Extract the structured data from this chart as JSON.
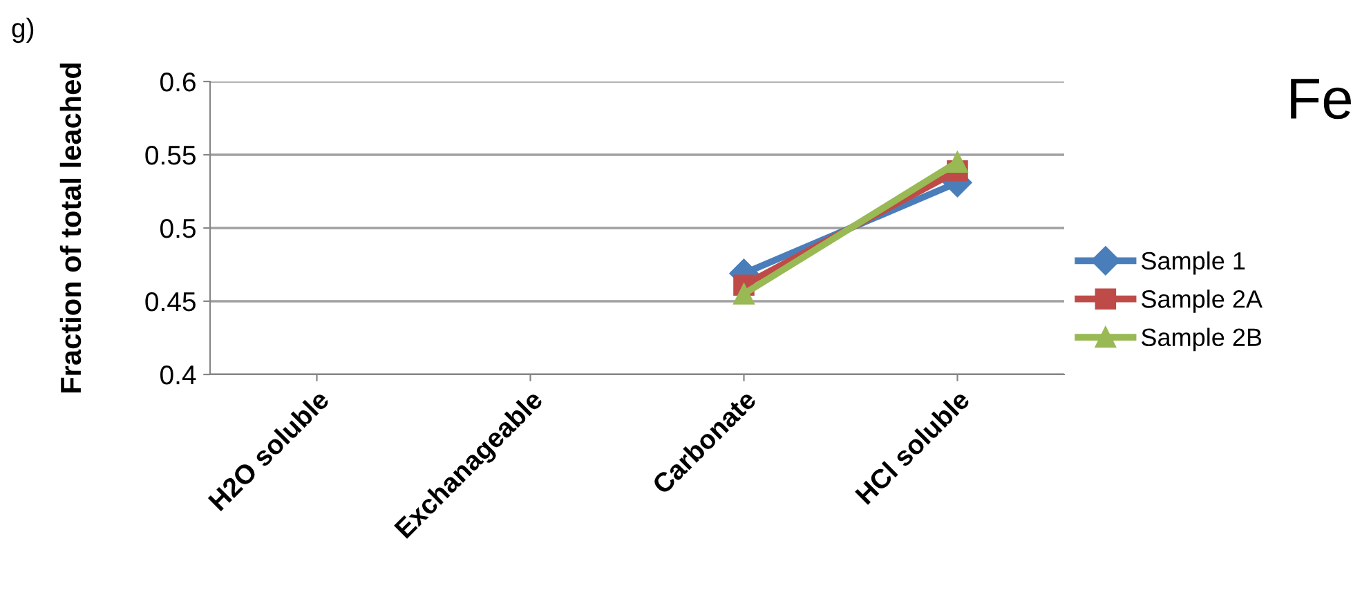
{
  "chart_data": {
    "type": "line",
    "title": "Fe",
    "ylabel": "Fraction of total leached",
    "annotations": [
      "g)"
    ],
    "categories": [
      "H2O soluble",
      "Exchanageable",
      "Carbonate",
      "HCl soluble"
    ],
    "ylim": [
      0.4,
      0.6
    ],
    "yticks": [
      {
        "value": 0.4,
        "label": "0.4"
      },
      {
        "value": 0.45,
        "label": "0.45"
      },
      {
        "value": 0.5,
        "label": "0.5"
      },
      {
        "value": 0.55,
        "label": "0.55"
      },
      {
        "value": 0.6,
        "label": "0.6"
      }
    ],
    "grid": "y",
    "legend": "right",
    "series": [
      {
        "name": "Sample 1",
        "color": "#4a7ebb",
        "marker": "diamond",
        "values": [
          null,
          null,
          0.469,
          0.531
        ]
      },
      {
        "name": "Sample 2A",
        "color": "#be4b48",
        "marker": "square",
        "values": [
          null,
          null,
          0.461,
          0.539
        ]
      },
      {
        "name": "Sample 2B",
        "color": "#98b954",
        "marker": "triangle",
        "values": [
          null,
          null,
          0.455,
          0.545
        ]
      }
    ]
  }
}
